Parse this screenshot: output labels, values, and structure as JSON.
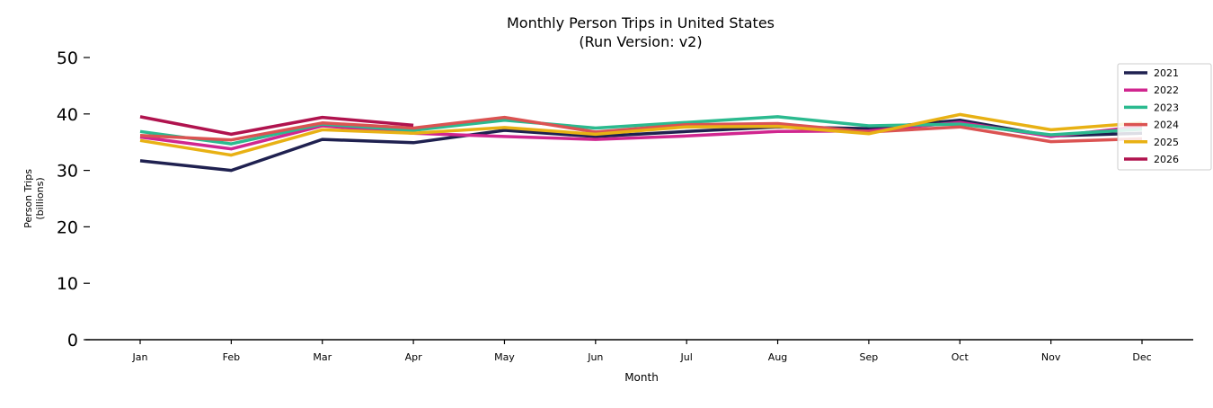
{
  "chart_data": {
    "type": "line",
    "title": "Monthly Person Trips in United States",
    "subtitle": "(Run Version: v2)",
    "xlabel": "Month",
    "ylabel": "Person Trips",
    "ylabel_unit": "(billions)",
    "categories": [
      "Jan",
      "Feb",
      "Mar",
      "Apr",
      "May",
      "Jun",
      "Jul",
      "Aug",
      "Sep",
      "Oct",
      "Nov",
      "Dec"
    ],
    "yticks": [
      "0",
      "10",
      "20",
      "30",
      "40",
      "50"
    ],
    "ylim": [
      0,
      50
    ],
    "grid": false,
    "legend_position": "top-right",
    "series": [
      {
        "name": "2021",
        "color": "#1f2150",
        "values": [
          31.7,
          30.0,
          35.5,
          34.9,
          37.1,
          36.0,
          36.9,
          37.7,
          37.4,
          38.9,
          36.1,
          36.6
        ]
      },
      {
        "name": "2022",
        "color": "#d0268f",
        "values": [
          35.9,
          33.8,
          37.9,
          36.6,
          36.0,
          35.5,
          36.1,
          36.9,
          37.0,
          38.5,
          36.0,
          37.8
        ]
      },
      {
        "name": "2023",
        "color": "#2bba8f",
        "values": [
          36.9,
          34.7,
          38.2,
          37.1,
          38.9,
          37.5,
          38.5,
          39.5,
          37.9,
          38.2,
          36.3,
          37.3
        ]
      },
      {
        "name": "2024",
        "color": "#db5352",
        "values": [
          36.2,
          35.4,
          38.4,
          37.5,
          39.4,
          36.8,
          38.1,
          38.3,
          36.8,
          37.7,
          35.1,
          35.6
        ]
      },
      {
        "name": "2025",
        "color": "#e8b114",
        "values": [
          35.3,
          32.7,
          37.2,
          36.6,
          37.6,
          36.4,
          37.7,
          37.8,
          36.5,
          39.9,
          37.2,
          38.4
        ]
      },
      {
        "name": "2026",
        "color": "#b0134e",
        "values": [
          39.5,
          36.4,
          39.4,
          38.0,
          null,
          null,
          null,
          null,
          null,
          null,
          null,
          null
        ]
      }
    ]
  }
}
